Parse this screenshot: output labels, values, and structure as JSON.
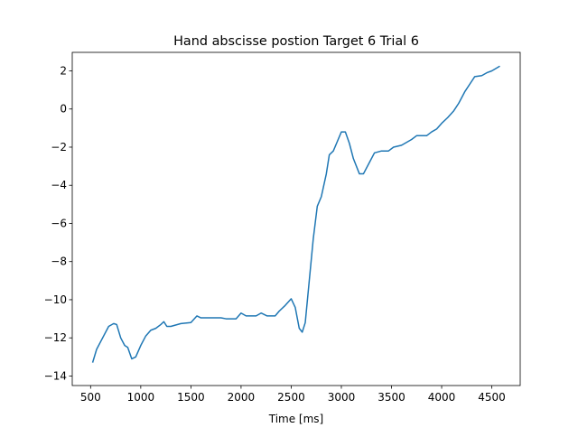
{
  "chart_data": {
    "type": "line",
    "title": "Hand abscisse postion Target 6 Trial 6",
    "x_label": "Time [ms]",
    "color": "#1f77b4",
    "x": [
      520,
      560,
      620,
      680,
      730,
      760,
      800,
      840,
      870,
      910,
      950,
      1000,
      1050,
      1100,
      1150,
      1200,
      1230,
      1260,
      1300,
      1400,
      1500,
      1560,
      1600,
      1700,
      1800,
      1850,
      1950,
      2000,
      2050,
      2150,
      2200,
      2260,
      2340,
      2380,
      2440,
      2500,
      2540,
      2580,
      2610,
      2640,
      2680,
      2720,
      2760,
      2800,
      2850,
      2880,
      2920,
      2960,
      3000,
      3040,
      3080,
      3120,
      3180,
      3220,
      3280,
      3330,
      3400,
      3470,
      3520,
      3600,
      3700,
      3750,
      3850,
      3900,
      3950,
      4000,
      4060,
      4120,
      4170,
      4230,
      4280,
      4330,
      4400,
      4450,
      4500,
      4580
    ],
    "values": [
      -13.3,
      -12.6,
      -12.0,
      -11.4,
      -11.25,
      -11.3,
      -12.0,
      -12.4,
      -12.5,
      -13.1,
      -13.0,
      -12.4,
      -11.9,
      -11.6,
      -11.5,
      -11.3,
      -11.15,
      -11.4,
      -11.4,
      -11.25,
      -11.2,
      -10.85,
      -10.95,
      -10.95,
      -10.95,
      -11.0,
      -11.0,
      -10.7,
      -10.85,
      -10.85,
      -10.7,
      -10.85,
      -10.85,
      -10.6,
      -10.3,
      -9.95,
      -10.4,
      -11.5,
      -11.7,
      -11.2,
      -9.0,
      -6.8,
      -5.1,
      -4.6,
      -3.4,
      -2.4,
      -2.2,
      -1.7,
      -1.2,
      -1.2,
      -1.8,
      -2.6,
      -3.4,
      -3.4,
      -2.8,
      -2.3,
      -2.2,
      -2.2,
      -2.0,
      -1.9,
      -1.6,
      -1.4,
      -1.4,
      -1.2,
      -1.05,
      -0.75,
      -0.45,
      -0.1,
      0.3,
      0.9,
      1.3,
      1.7,
      1.75,
      1.9,
      2.0,
      2.25
    ],
    "xlim": [
      317,
      4783
    ],
    "ylim": [
      -14.5,
      2.97
    ],
    "xticks": [
      500,
      1000,
      1500,
      2000,
      2500,
      3000,
      3500,
      4000,
      4500
    ],
    "yticks": [
      {
        "value": -14,
        "label": "−14"
      },
      {
        "value": -12,
        "label": "−12"
      },
      {
        "value": -10,
        "label": "−10"
      },
      {
        "value": -8,
        "label": "−8"
      },
      {
        "value": -6,
        "label": "−6"
      },
      {
        "value": -4,
        "label": "−4"
      },
      {
        "value": -2,
        "label": "−2"
      },
      0,
      2
    ],
    "grid": false
  }
}
